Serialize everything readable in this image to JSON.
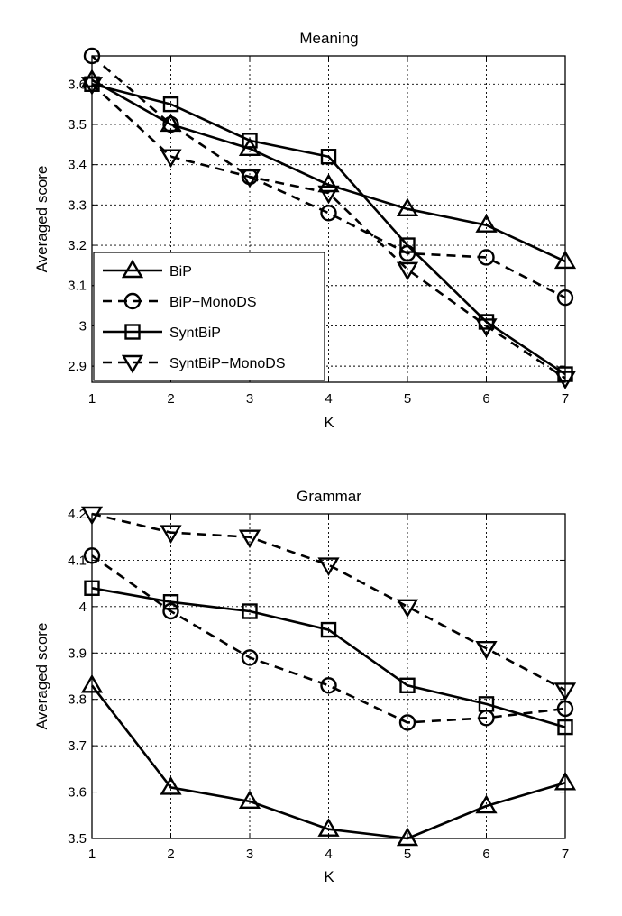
{
  "chart_data": [
    {
      "type": "line",
      "title": "Meaning",
      "xlabel": "K",
      "ylabel": "Averaged score",
      "x": [
        1,
        2,
        3,
        4,
        5,
        6,
        7
      ],
      "xticks": [
        "1",
        "2",
        "3",
        "4",
        "5",
        "6",
        "7"
      ],
      "yticks": [
        "2.9",
        "3",
        "3.1",
        "3.2",
        "3.3",
        "3.4",
        "3.5",
        "3.6"
      ],
      "xlim": [
        1,
        7
      ],
      "ylim": [
        2.86,
        3.67
      ],
      "grid": true,
      "legend": "bottom-left",
      "series": [
        {
          "name": "BiP",
          "values": [
            3.61,
            3.5,
            3.44,
            3.35,
            3.29,
            3.25,
            3.16
          ],
          "marker": "triangle-up",
          "style": "solid"
        },
        {
          "name": "BiP−MonoDS",
          "values": [
            3.67,
            3.5,
            3.37,
            3.28,
            3.18,
            3.17,
            3.07
          ],
          "marker": "circle",
          "style": "dashed"
        },
        {
          "name": "SyntBiP",
          "values": [
            3.6,
            3.55,
            3.46,
            3.42,
            3.2,
            3.01,
            2.88
          ],
          "marker": "square",
          "style": "solid"
        },
        {
          "name": "SyntBiP−MonoDS",
          "values": [
            3.6,
            3.42,
            3.37,
            3.33,
            3.14,
            3.0,
            2.87
          ],
          "marker": "triangle-down",
          "style": "dashed"
        }
      ]
    },
    {
      "type": "line",
      "title": "Grammar",
      "xlabel": "K",
      "ylabel": "Averaged score",
      "x": [
        1,
        2,
        3,
        4,
        5,
        6,
        7
      ],
      "xticks": [
        "1",
        "2",
        "3",
        "4",
        "5",
        "6",
        "7"
      ],
      "yticks": [
        "3.5",
        "3.6",
        "3.7",
        "3.8",
        "3.9",
        "4",
        "4.1",
        "4.2"
      ],
      "xlim": [
        1,
        7
      ],
      "ylim": [
        3.5,
        4.2
      ],
      "grid": true,
      "series": [
        {
          "name": "BiP",
          "values": [
            3.83,
            3.61,
            3.58,
            3.52,
            3.5,
            3.57,
            3.62
          ],
          "marker": "triangle-up",
          "style": "solid"
        },
        {
          "name": "BiP−MonoDS",
          "values": [
            4.11,
            3.99,
            3.89,
            3.83,
            3.75,
            3.76,
            3.78
          ],
          "marker": "circle",
          "style": "dashed"
        },
        {
          "name": "SyntBiP",
          "values": [
            4.04,
            4.01,
            3.99,
            3.95,
            3.83,
            3.79,
            3.74
          ],
          "marker": "square",
          "style": "solid"
        },
        {
          "name": "SyntBiP−MonoDS",
          "values": [
            4.2,
            4.16,
            4.15,
            4.09,
            4.0,
            3.91,
            3.82
          ],
          "marker": "triangle-down",
          "style": "dashed"
        }
      ]
    }
  ]
}
